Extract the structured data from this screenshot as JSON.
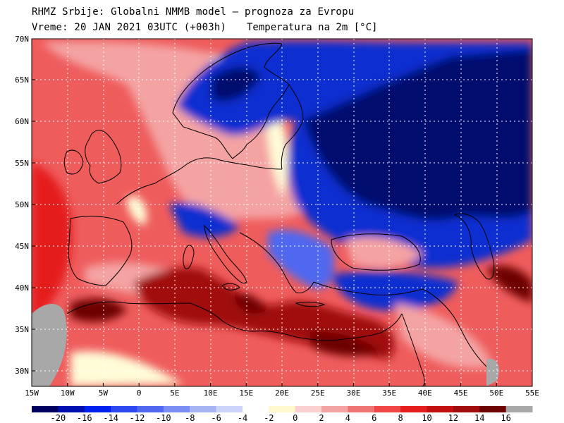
{
  "header": {
    "title": "RHMZ Srbije: Globalni NMMB model — prognoza za Evropu",
    "valid_time": "Vreme: 20 JAN 2021 03UTC (+003h)",
    "field": "Temperatura na 2m [°C]"
  },
  "map": {
    "lat_labels": [
      "70N",
      "65N",
      "60N",
      "55N",
      "50N",
      "45N",
      "40N",
      "35N",
      "30N"
    ],
    "lon_labels": [
      "15W",
      "10W",
      "5W",
      "0",
      "5E",
      "10E",
      "15E",
      "20E",
      "25E",
      "30E",
      "35E",
      "40E",
      "45E",
      "50E",
      "55E"
    ],
    "colors": {
      "very_cold": "#000f6e",
      "cold": "#0a2fd0",
      "cool": "#5068f0",
      "mild_cold": "#a6b4f6",
      "neutral": "#fffcd8",
      "warm": "#f4a3a3",
      "warmer": "#ef5c5c",
      "hot": "#e51d1d",
      "very_hot": "#a10d0d",
      "hottest": "#6d0404",
      "missing": "#a8a8a8",
      "coast": "#000000",
      "grid": "#ffffff"
    }
  },
  "colorbar": {
    "labels": [
      "-20",
      "-16",
      "-14",
      "-12",
      "-10",
      "-8",
      "-6",
      "-4",
      "-2",
      "0",
      "2",
      "4",
      "6",
      "8",
      "10",
      "12",
      "14",
      "16"
    ],
    "colors": [
      "#000060",
      "#000fb0",
      "#0020f0",
      "#2c48f2",
      "#5068f0",
      "#7a8ef4",
      "#a6b4f6",
      "#cdd4fa",
      "#ffffff",
      "#fff9cc",
      "#fbd0d0",
      "#f4a3a3",
      "#ef7474",
      "#ef4545",
      "#e51d1d",
      "#c30f0f",
      "#a10d0d",
      "#6d0404",
      "#a8a8a8"
    ]
  }
}
